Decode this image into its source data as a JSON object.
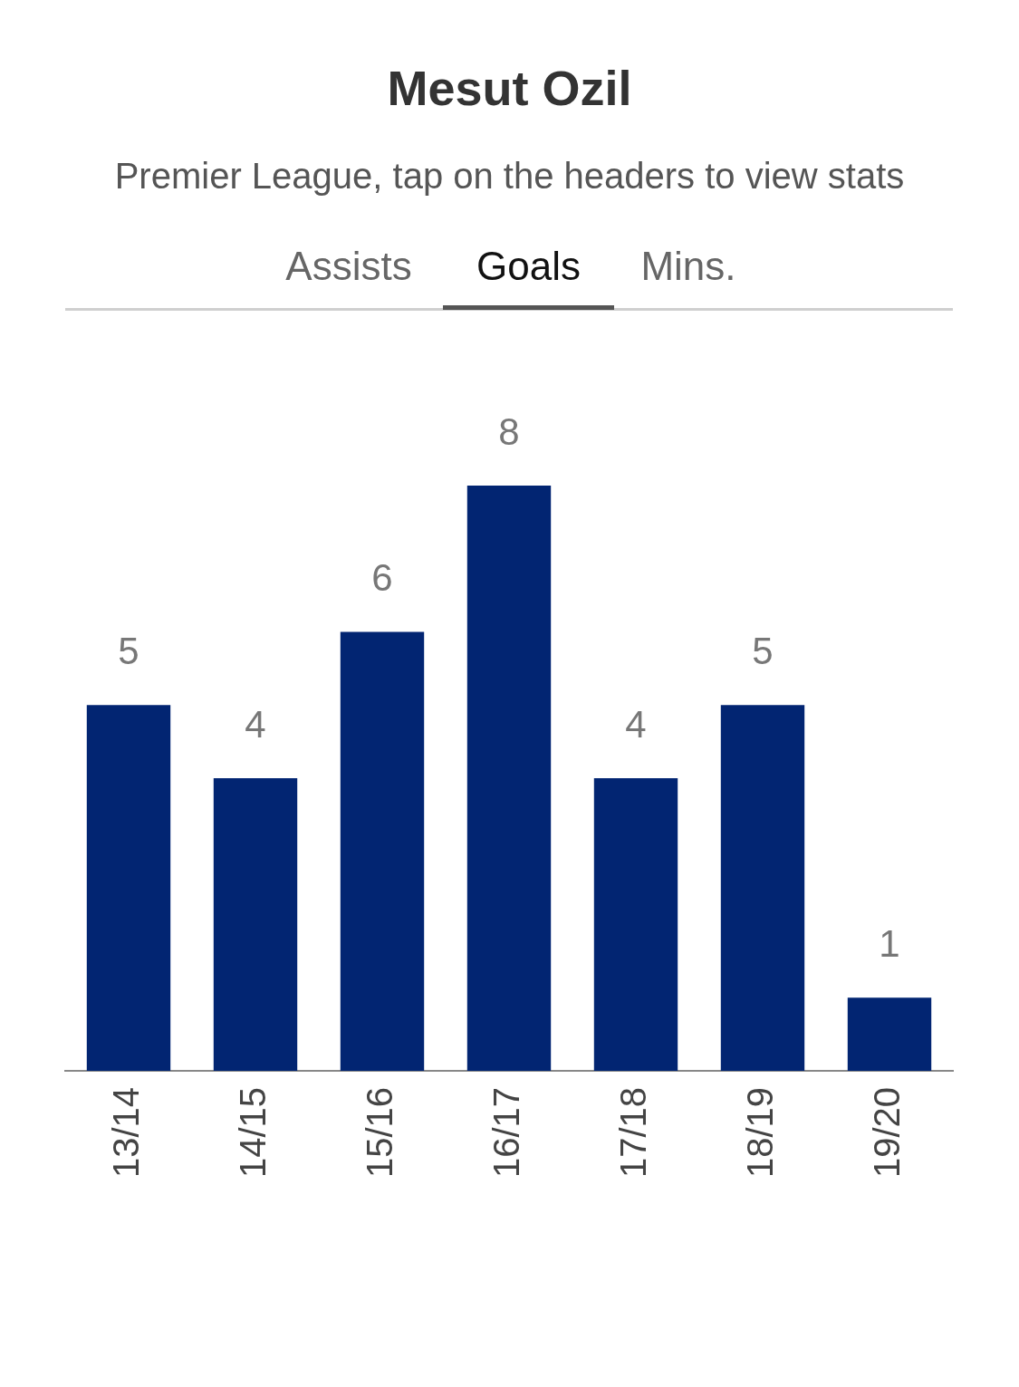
{
  "chart_data": {
    "type": "bar",
    "title": "Mesut Ozil",
    "subtitle": "Premier League, tap on the headers to view stats",
    "ylabel": "Goals",
    "annotations": [
      "Assists",
      "Mins."
    ],
    "categories": [
      "13/14",
      "14/15",
      "15/16",
      "16/17",
      "17/18",
      "18/19",
      "19/20"
    ],
    "values": [
      5,
      4,
      6,
      8,
      4,
      5,
      1
    ],
    "color": "#022572",
    "tick_labels": "x",
    "data_labels": true
  }
}
